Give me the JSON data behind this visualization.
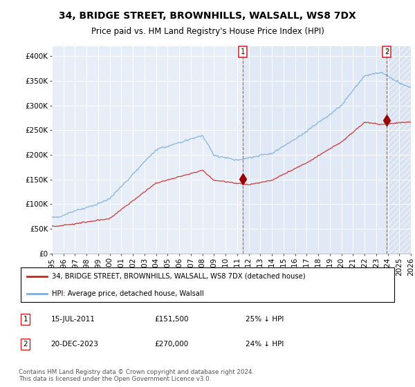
{
  "title": "34, BRIDGE STREET, BROWNHILLS, WALSALL, WS8 7DX",
  "subtitle": "Price paid vs. HM Land Registry's House Price Index (HPI)",
  "yticks": [
    0,
    50000,
    100000,
    150000,
    200000,
    250000,
    300000,
    350000,
    400000
  ],
  "ytick_labels": [
    "£0",
    "£50K",
    "£100K",
    "£150K",
    "£200K",
    "£250K",
    "£300K",
    "£350K",
    "£400K"
  ],
  "hpi_color": "#7aade0",
  "price_color": "#cc2222",
  "legend_line1": "34, BRIDGE STREET, BROWNHILLS, WALSALL, WS8 7DX (detached house)",
  "legend_line2": "HPI: Average price, detached house, Walsall",
  "table_row1": [
    "1",
    "15-JUL-2011",
    "£151,500",
    "25% ↓ HPI"
  ],
  "table_row2": [
    "2",
    "20-DEC-2023",
    "£270,000",
    "24% ↓ HPI"
  ],
  "footnote": "Contains HM Land Registry data © Crown copyright and database right 2024.\nThis data is licensed under the Open Government Licence v3.0.",
  "plot_bg": "#e8eef8",
  "shade_color": "#dde8f5",
  "hatch_color": "#c0ccdd",
  "sale1_month": 198,
  "sale1_price": 151500,
  "sale2_month": 347,
  "sale2_price": 270000,
  "n_months": 373,
  "start_year": 1995
}
